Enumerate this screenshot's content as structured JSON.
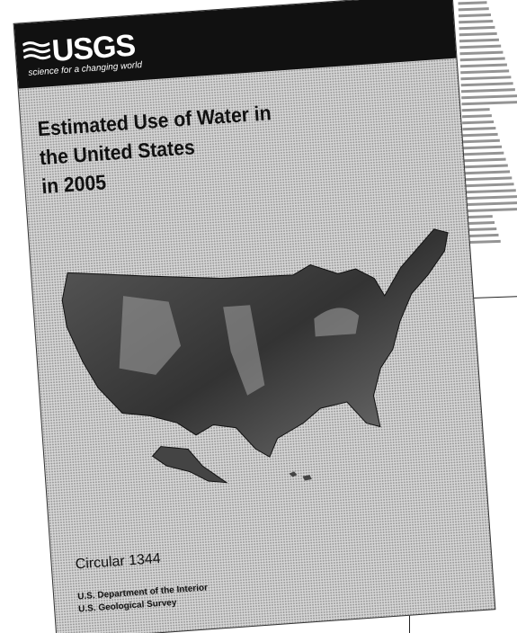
{
  "header": {
    "logo": "USGS",
    "tagline": "science for a changing world"
  },
  "title": {
    "lines": [
      "Estimated Use of Water in",
      "the United States",
      "in 2005"
    ]
  },
  "series": "Circular 1344",
  "publisher": {
    "lines": [
      "U.S. Department of the Interior",
      "U.S. Geological Survey"
    ]
  }
}
